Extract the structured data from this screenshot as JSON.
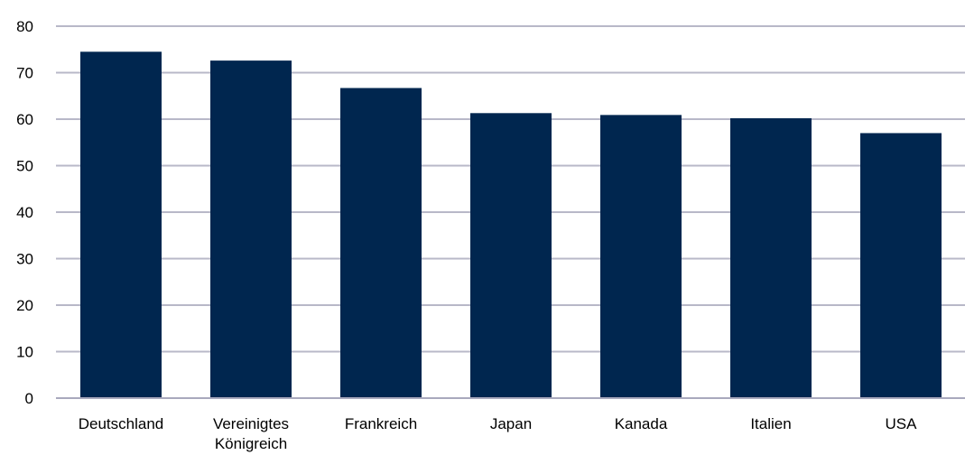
{
  "chart_data": {
    "type": "bar",
    "title": "",
    "xlabel": "",
    "ylabel": "",
    "categories": [
      [
        "Deutschland"
      ],
      [
        "Vereinigtes",
        "Königreich"
      ],
      [
        "Frankreich"
      ],
      [
        "Japan"
      ],
      [
        "Kanada"
      ],
      [
        "Italien"
      ],
      [
        "USA"
      ]
    ],
    "values": [
      74.5,
      72.6,
      66.7,
      61.3,
      60.9,
      60.2,
      57.0
    ],
    "ylim": [
      0,
      80
    ],
    "yticks": [
      "0",
      "10",
      "20",
      "30",
      "40",
      "50",
      "60",
      "70",
      "80"
    ],
    "grid": true,
    "legend": "none",
    "colors": {
      "bar": "#00264f",
      "grid": "#b8b8c8",
      "axis": "#a9a9bd",
      "text": "#000000"
    }
  }
}
